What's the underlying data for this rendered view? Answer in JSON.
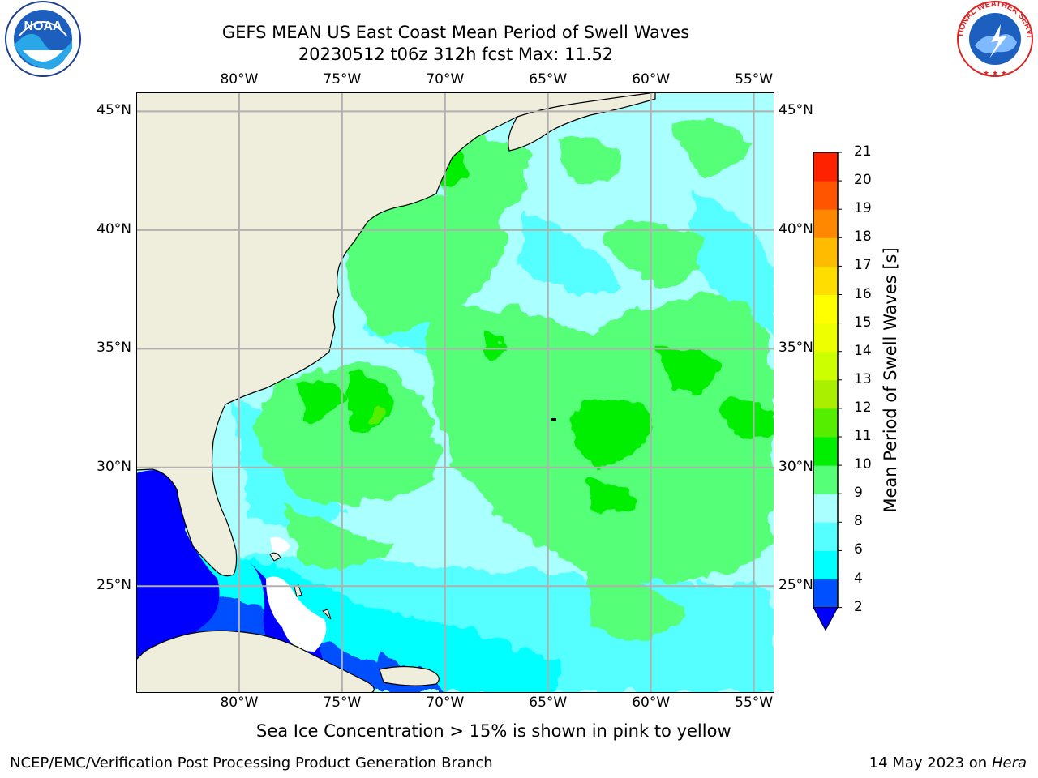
{
  "header": {
    "title_line1": "GEFS MEAN US East Coast Mean Period of Swell Waves",
    "title_line2": "20230512 t06z 312h fcst   Max: 11.52"
  },
  "logos": {
    "left_text": "NOAA",
    "right_text": "NATIONAL WEATHER SERVICE"
  },
  "map": {
    "lon_ticks": [
      "80°W",
      "75°W",
      "70°W",
      "65°W",
      "60°W",
      "55°W"
    ],
    "lat_ticks": [
      "45°N",
      "40°N",
      "35°N",
      "30°N",
      "25°N"
    ],
    "lon_range": [
      -85,
      -54
    ],
    "lat_range": [
      20.5,
      45.8
    ],
    "land_color": "#efeddc",
    "grid_color": "#b0b0b0"
  },
  "colorbar": {
    "label": "Mean Period of Swell Waves [s]",
    "tick_labels": [
      "2",
      "4",
      "6",
      "8",
      "9",
      "10",
      "11",
      "12",
      "13",
      "14",
      "15",
      "16",
      "17",
      "18",
      "19",
      "20",
      "21"
    ],
    "colors": [
      "#0050ff",
      "#00ffff",
      "#55ffff",
      "#aaffff",
      "#55ff77",
      "#00ee00",
      "#55ee00",
      "#aaee00",
      "#ccff00",
      "#eeff00",
      "#ffff00",
      "#ffdd00",
      "#ffbb00",
      "#ff8800",
      "#ff5500",
      "#ff2200"
    ],
    "extend_color": "#0000ff"
  },
  "notes": {
    "sea_ice": "Sea Ice Concentration > 15% is shown in pink to yellow"
  },
  "footer": {
    "left": "NCEP/EMC/Verification Post Processing Product Generation Branch",
    "right_date": "14 May 2023 on",
    "right_machine": "Hera"
  }
}
